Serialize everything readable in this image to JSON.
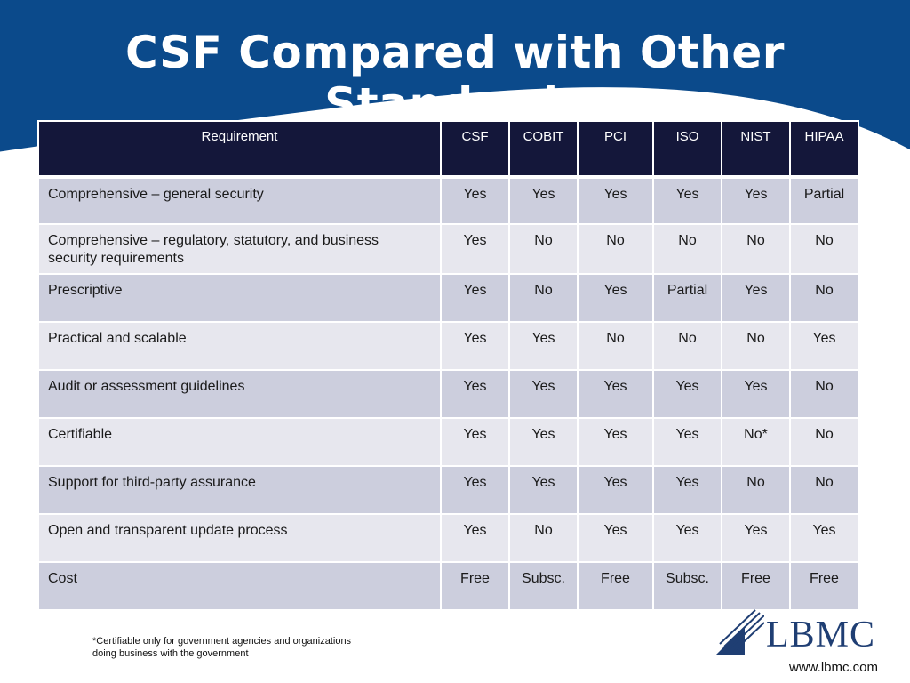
{
  "slide": {
    "title": "CSF Compared with Other Standards",
    "footnote_line1": "*Certifiable only for government agencies and organizations",
    "footnote_line2": "doing business with the government",
    "logo_text": "LBMC",
    "website": "www.lbmc.com",
    "colors": {
      "header_blue": "#0b4a8b",
      "table_header": "#14173a",
      "row_dark": "#cccedd",
      "row_light": "#e7e7ee",
      "logo_navy": "#1f3e73"
    }
  },
  "table": {
    "headers": [
      "Requirement",
      "CSF",
      "COBIT",
      "PCI",
      "ISO",
      "NIST",
      "HIPAA"
    ],
    "rows": [
      [
        "Comprehensive – general security",
        "Yes",
        "Yes",
        "Yes",
        "Yes",
        "Yes",
        "Partial"
      ],
      [
        "Comprehensive – regulatory, statutory, and business security requirements",
        "Yes",
        "No",
        "No",
        "No",
        "No",
        "No"
      ],
      [
        "Prescriptive",
        "Yes",
        "No",
        "Yes",
        "Partial",
        "Yes",
        "No"
      ],
      [
        "Practical and scalable",
        "Yes",
        "Yes",
        "No",
        "No",
        "No",
        "Yes"
      ],
      [
        "Audit or assessment guidelines",
        "Yes",
        "Yes",
        "Yes",
        "Yes",
        "Yes",
        "No"
      ],
      [
        "Certifiable",
        "Yes",
        "Yes",
        "Yes",
        "Yes",
        "No*",
        "No"
      ],
      [
        "Support for third-party assurance",
        "Yes",
        "Yes",
        "Yes",
        "Yes",
        "No",
        "No"
      ],
      [
        "Open and transparent update process",
        "Yes",
        "No",
        "Yes",
        "Yes",
        "Yes",
        "Yes"
      ],
      [
        "Cost",
        "Free",
        "Subsc.",
        "Free",
        "Subsc.",
        "Free",
        "Free"
      ]
    ]
  }
}
